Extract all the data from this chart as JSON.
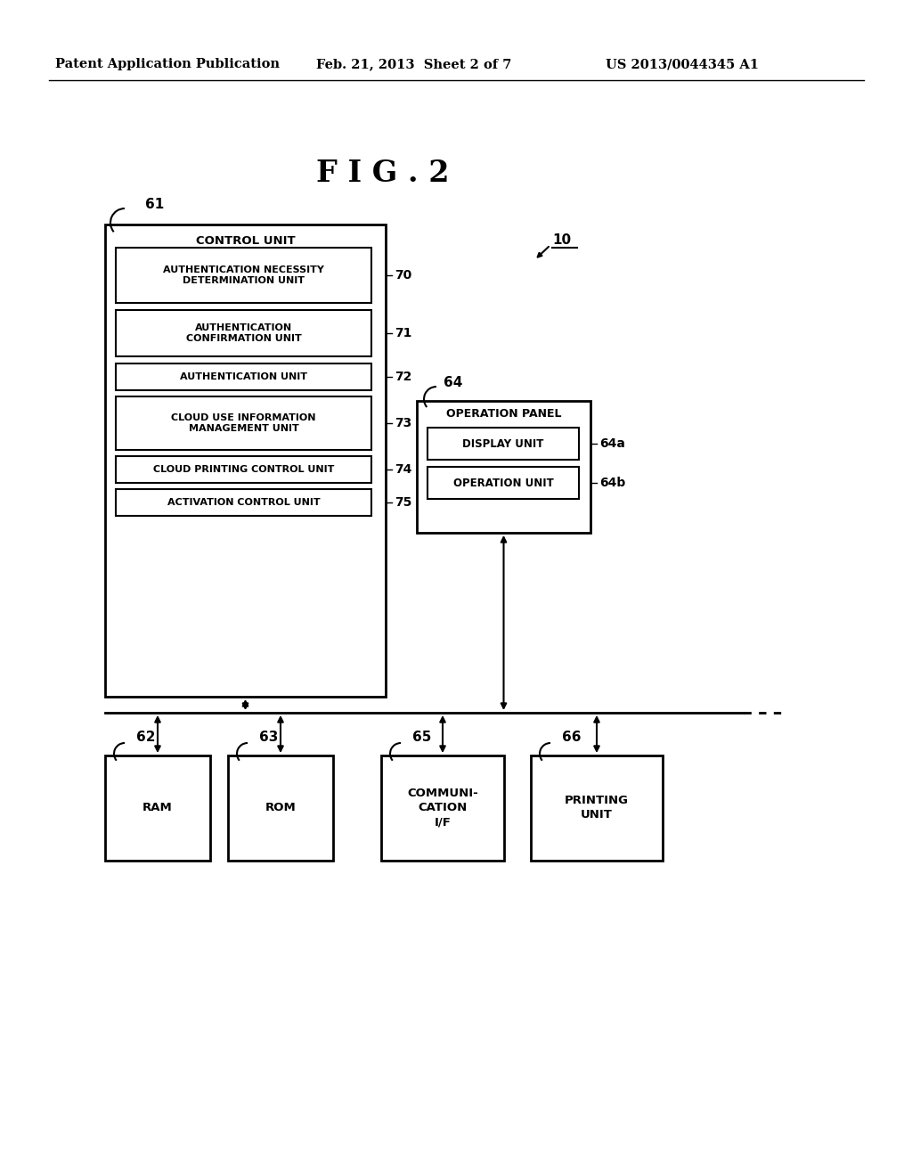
{
  "bg_color": "#ffffff",
  "header_left": "Patent Application Publication",
  "header_mid": "Feb. 21, 2013  Sheet 2 of 7",
  "header_right": "US 2013/0044345 A1",
  "fig_title": "F I G . 2",
  "control_unit_label": "CONTROL UNIT",
  "control_unit_ref": "61",
  "device_ref": "10",
  "inner_boxes": [
    {
      "label": "AUTHENTICATION NECESSITY\nDETERMINATION UNIT",
      "ref": "70"
    },
    {
      "label": "AUTHENTICATION\nCONFIRMATION UNIT",
      "ref": "71"
    },
    {
      "label": "AUTHENTICATION UNIT",
      "ref": "72"
    },
    {
      "label": "CLOUD USE INFORMATION\nMANAGEMENT UNIT",
      "ref": "73"
    },
    {
      "label": "CLOUD PRINTING CONTROL UNIT",
      "ref": "74"
    },
    {
      "label": "ACTIVATION CONTROL UNIT",
      "ref": "75"
    }
  ],
  "op_panel_label": "OPERATION PANEL",
  "op_panel_ref": "64",
  "op_inner_boxes": [
    {
      "label": "DISPLAY UNIT",
      "ref": "64a"
    },
    {
      "label": "OPERATION UNIT",
      "ref": "64b"
    }
  ],
  "bottom_boxes": [
    {
      "label": "RAM",
      "ref": "62"
    },
    {
      "label": "ROM",
      "ref": "63"
    },
    {
      "label": "COMMUNI-\nCATION\nI/F",
      "ref": "65"
    },
    {
      "label": "PRINTING\nUNIT",
      "ref": "66"
    }
  ]
}
